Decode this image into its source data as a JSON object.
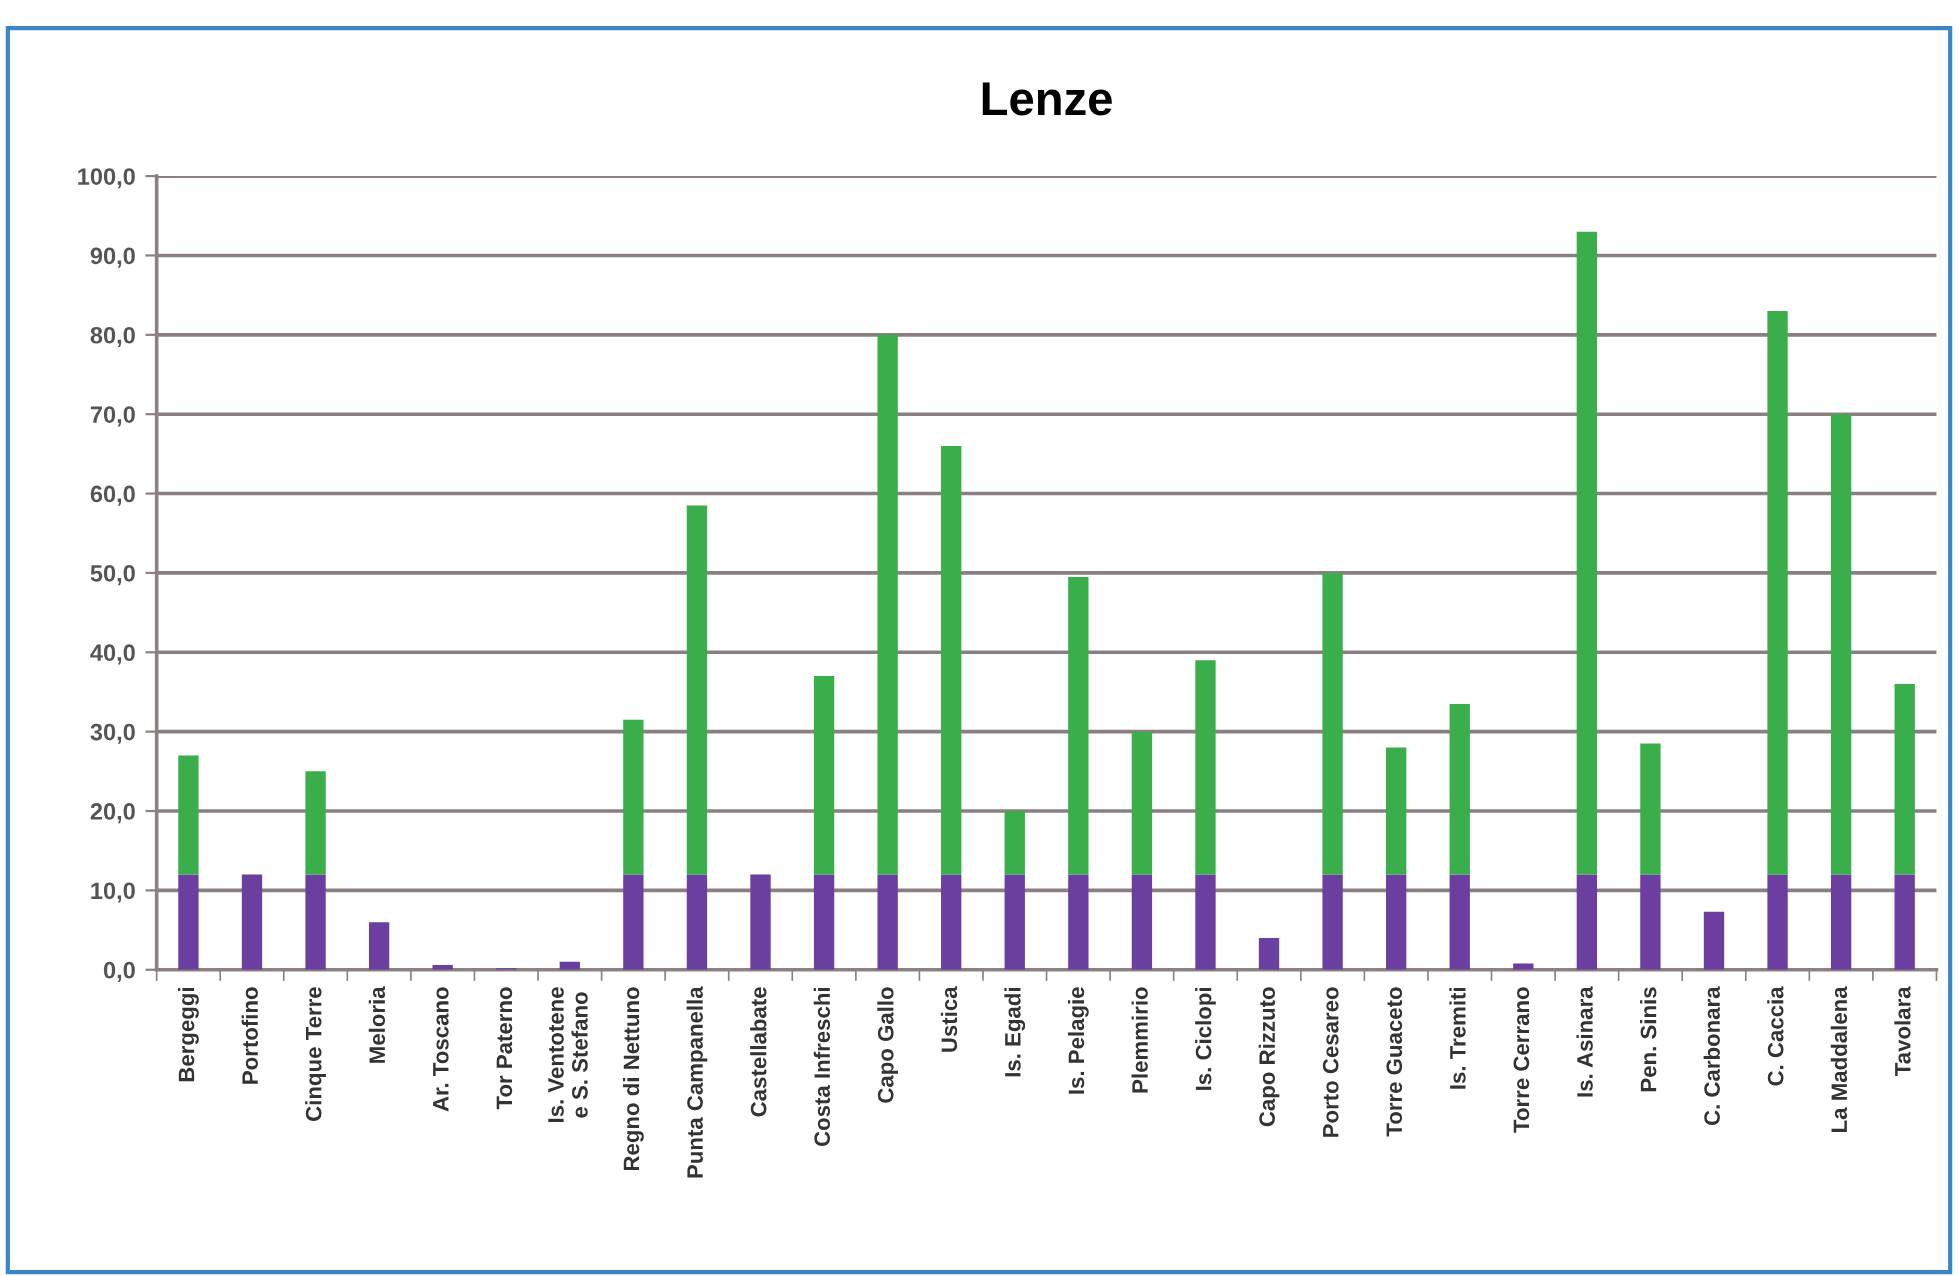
{
  "chart_data": {
    "type": "bar",
    "title": "Lenze",
    "categories": [
      "Bergeggi",
      "Portofino",
      "Cinque Terre",
      "Meloria",
      "Ar. Toscano",
      "Tor Paterno",
      "Is. Ventotene\ne S. Stefano",
      "Regno di Nettuno",
      "Punta Campanella",
      "Castellabate",
      "Costa Infreschi",
      "Capo Gallo",
      "Ustica",
      "Is. Egadi",
      "Is. Pelagie",
      "Plemmirio",
      "Is. Ciclopi",
      "Capo Rizzuto",
      "Porto Cesareo",
      "Torre Guaceto",
      "Is. Tremiti",
      "Torre Cerrano",
      "Is. Asinara",
      "Pen. Sinis",
      "C. Carbonara",
      "C. Caccia",
      "La Maddalena",
      "Tavolara"
    ],
    "stacked": true,
    "series": [
      {
        "color": "#6b3fa0",
        "values": [
          12,
          12,
          12,
          6,
          0.6,
          0.2,
          1,
          12,
          12,
          12,
          12,
          12,
          12,
          12,
          12,
          12,
          12,
          4,
          12,
          12,
          12,
          0.8,
          12,
          12,
          7.3,
          12,
          12,
          12
        ]
      },
      {
        "color": "#3aae4a",
        "values": [
          15,
          null,
          13,
          null,
          null,
          null,
          null,
          19.5,
          46.5,
          null,
          25,
          68,
          54,
          8,
          37.5,
          18,
          27,
          null,
          38,
          16,
          21.5,
          null,
          81,
          16.5,
          null,
          71,
          58,
          24
        ]
      }
    ],
    "ylim": [
      0,
      100
    ],
    "yticks": [
      {
        "value": 0,
        "label": "0,0"
      },
      {
        "value": 10,
        "label": "10,0"
      },
      {
        "value": 20,
        "label": "20,0"
      },
      {
        "value": 30,
        "label": "30,0"
      },
      {
        "value": 40,
        "label": "40,0"
      },
      {
        "value": 50,
        "label": "50,0"
      },
      {
        "value": 60,
        "label": "60,0"
      },
      {
        "value": 70,
        "label": "70,0"
      },
      {
        "value": 80,
        "label": "80,0"
      },
      {
        "value": 90,
        "label": "90,0"
      },
      {
        "value": 100,
        "label": "100,0"
      }
    ],
    "grid": "y",
    "legend": false
  }
}
